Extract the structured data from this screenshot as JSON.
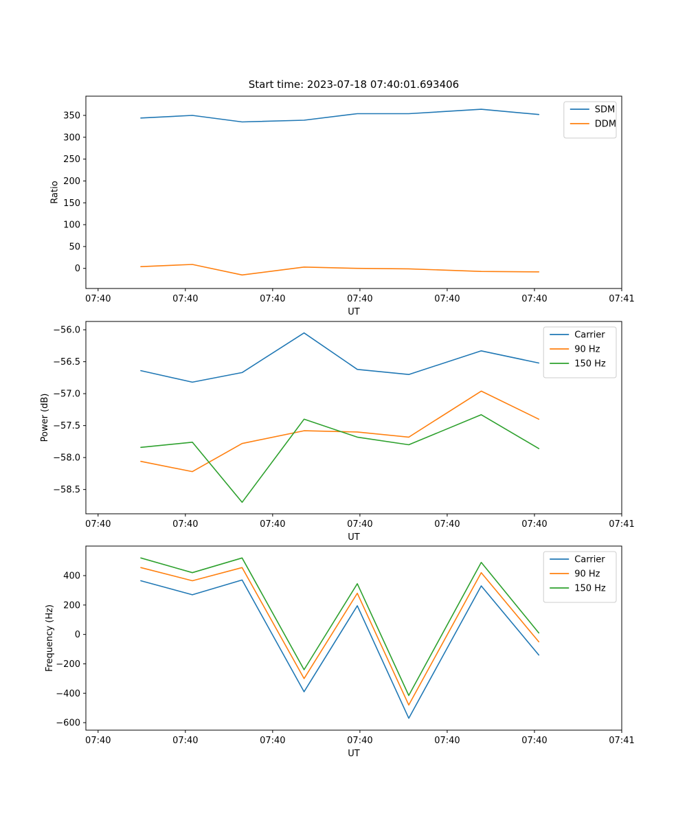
{
  "figure": {
    "background": "#ffffff",
    "title": "Start time: 2023-07-18 07:40:01.693406"
  },
  "colors": {
    "blue": "#1f77b4",
    "orange": "#ff7f0e",
    "green": "#2ca02c",
    "spine": "#000000",
    "legend_border": "#cccccc"
  },
  "chart_data": [
    {
      "type": "line",
      "title": "Start time: 2023-07-18 07:40:01.693406",
      "xlabel": "UT",
      "ylabel": "Ratio",
      "xlim": [
        -0.14,
        6.0
      ],
      "ylim": [
        -46,
        394
      ],
      "grid": false,
      "legend_position": "upper right",
      "xticks": {
        "values": [
          0,
          1,
          2,
          3,
          4,
          5,
          6
        ],
        "labels": [
          "07:40",
          "07:40",
          "07:40",
          "07:40",
          "07:40",
          "07:40",
          "07:41"
        ]
      },
      "yticks": {
        "values": [
          0,
          50,
          100,
          150,
          200,
          250,
          300,
          350
        ],
        "labels": [
          "0",
          "50",
          "100",
          "150",
          "200",
          "250",
          "300",
          "350"
        ]
      },
      "x": [
        0.49,
        1.08,
        1.65,
        2.36,
        2.97,
        3.56,
        4.39,
        5.05
      ],
      "series": [
        {
          "name": "SDM",
          "color": "#1f77b4",
          "values": [
            344,
            350,
            335,
            339,
            354,
            354,
            364,
            352
          ]
        },
        {
          "name": "DDM",
          "color": "#ff7f0e",
          "values": [
            4,
            9,
            -15,
            3,
            0,
            -1,
            -7,
            -8
          ]
        }
      ]
    },
    {
      "type": "line",
      "title": "",
      "xlabel": "UT",
      "ylabel": "Power (dB)",
      "xlim": [
        -0.14,
        6.0
      ],
      "ylim": [
        -58.88,
        -55.87
      ],
      "grid": false,
      "legend_position": "upper right",
      "xticks": {
        "values": [
          0,
          1,
          2,
          3,
          4,
          5,
          6
        ],
        "labels": [
          "07:40",
          "07:40",
          "07:40",
          "07:40",
          "07:40",
          "07:40",
          "07:41"
        ]
      },
      "yticks": {
        "values": [
          -56.0,
          -56.5,
          -57.0,
          -57.5,
          -58.0,
          -58.5
        ],
        "labels": [
          "−56.0",
          "−56.5",
          "−57.0",
          "−57.5",
          "−58.0",
          "−58.5"
        ]
      },
      "x": [
        0.49,
        1.08,
        1.65,
        2.36,
        2.97,
        3.56,
        4.39,
        5.05
      ],
      "series": [
        {
          "name": "Carrier",
          "color": "#1f77b4",
          "values": [
            -56.64,
            -56.82,
            -56.67,
            -56.05,
            -56.62,
            -56.7,
            -56.33,
            -56.52
          ]
        },
        {
          "name": "90 Hz",
          "color": "#ff7f0e",
          "values": [
            -58.06,
            -58.22,
            -57.78,
            -57.58,
            -57.6,
            -57.68,
            -56.96,
            -57.4
          ]
        },
        {
          "name": "150 Hz",
          "color": "#2ca02c",
          "values": [
            -57.84,
            -57.76,
            -58.7,
            -57.4,
            -57.68,
            -57.8,
            -57.33,
            -57.86
          ]
        }
      ]
    },
    {
      "type": "line",
      "title": "",
      "xlabel": "UT",
      "ylabel": "Frequency (Hz)",
      "xlim": [
        -0.14,
        6.0
      ],
      "ylim": [
        -651,
        601
      ],
      "grid": false,
      "legend_position": "upper right",
      "xticks": {
        "values": [
          0,
          1,
          2,
          3,
          4,
          5,
          6
        ],
        "labels": [
          "07:40",
          "07:40",
          "07:40",
          "07:40",
          "07:40",
          "07:40",
          "07:41"
        ]
      },
      "yticks": {
        "values": [
          -600,
          -400,
          -200,
          0,
          200,
          400
        ],
        "labels": [
          "−600",
          "−400",
          "−200",
          "0",
          "200",
          "400"
        ]
      },
      "x": [
        0.49,
        1.08,
        1.65,
        2.36,
        2.97,
        3.56,
        4.39,
        5.05
      ],
      "series": [
        {
          "name": "Carrier",
          "color": "#1f77b4",
          "values": [
            365,
            270,
            370,
            -390,
            195,
            -570,
            330,
            -140
          ]
        },
        {
          "name": "90 Hz",
          "color": "#ff7f0e",
          "values": [
            455,
            365,
            455,
            -300,
            280,
            -480,
            420,
            -50
          ]
        },
        {
          "name": "150 Hz",
          "color": "#2ca02c",
          "values": [
            520,
            420,
            520,
            -240,
            345,
            -415,
            490,
            10
          ]
        }
      ]
    }
  ]
}
